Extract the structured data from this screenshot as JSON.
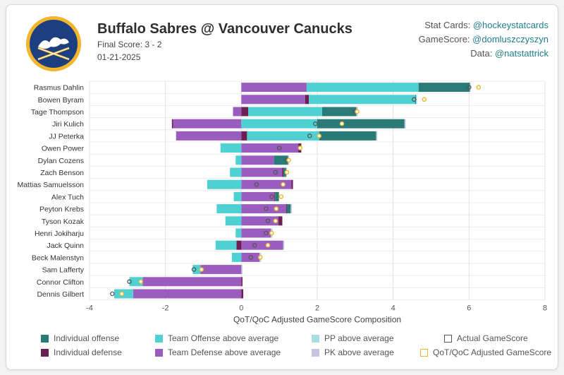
{
  "header": {
    "title": "Buffalo Sabres @ Vancouver Canucks",
    "final_score": "Final Score: 3 - 2",
    "date": "01-21-2025"
  },
  "credits": [
    {
      "label": "Stat Cards: ",
      "handle": "@hockeystatcards"
    },
    {
      "label": "GameScore: ",
      "handle": "@domluszczyszyn"
    },
    {
      "label": "Data: ",
      "handle": "@natstattrick"
    }
  ],
  "colors": {
    "individual_offense": "#2a7b78",
    "individual_defense": "#6b1f52",
    "team_offense": "#4fd1d3",
    "team_defense": "#9a5cbf",
    "pp": "#a8dde6",
    "pk": "#c5c5e2",
    "actual_marker": "#555555",
    "adjusted_marker": "#e8b92c"
  },
  "chart_data": {
    "type": "bar",
    "orientation": "horizontal",
    "stacked": true,
    "xlabel": "QoT/QoC Adjusted GameScore Composition",
    "xlim": [
      -4,
      8
    ],
    "xticks": [
      -4,
      -2,
      0,
      2,
      4,
      6,
      8
    ],
    "grid": true,
    "legend_position": "bottom",
    "categories": [
      "Rasmus Dahlin",
      "Bowen Byram",
      "Tage Thompson",
      "Jiri Kulich",
      "JJ Peterka",
      "Owen Power",
      "Dylan Cozens",
      "Zach Benson",
      "Mattias Samuelsson",
      "Alex Tuch",
      "Peyton Krebs",
      "Tyson Kozak",
      "Henri Jokiharju",
      "Jack Quinn",
      "Beck Malenstyn",
      "Sam Lafferty",
      "Connor Clifton",
      "Dennis Gilbert"
    ],
    "series": [
      {
        "name": "Individual offense",
        "values": [
          1.35,
          0.02,
          0.9,
          2.3,
          1.5,
          0,
          0.37,
          0.07,
          0,
          0.1,
          0.1,
          0,
          0,
          0,
          0,
          0,
          0,
          0
        ]
      },
      {
        "name": "Individual defense",
        "values": [
          0,
          0.1,
          0.18,
          -0.03,
          0.15,
          0.08,
          0,
          0.03,
          0.04,
          0.02,
          0.02,
          0.1,
          0,
          -0.13,
          0,
          0,
          0.03,
          0.05
        ]
      },
      {
        "name": "Team Offense above average",
        "values": [
          2.95,
          2.8,
          1.95,
          2.0,
          1.9,
          -0.55,
          -0.15,
          -0.3,
          -0.9,
          -0.2,
          -0.65,
          -0.42,
          -0.15,
          -0.55,
          -0.25,
          -0.2,
          -0.35,
          -0.5
        ]
      },
      {
        "name": "Team Defense above average",
        "values": [
          1.72,
          1.68,
          -0.22,
          -1.8,
          -1.72,
          1.5,
          0.86,
          1.08,
          1.32,
          0.87,
          1.18,
          0.98,
          0.78,
          1.1,
          0.48,
          -1.08,
          -2.6,
          -2.85
        ]
      },
      {
        "name": "PP above average",
        "values": [
          0,
          0.03,
          0,
          0,
          0,
          0,
          0,
          0,
          0,
          0,
          0,
          0,
          0,
          0,
          0,
          0,
          0,
          0
        ]
      },
      {
        "name": "PK above average",
        "values": [
          0.02,
          0,
          0.04,
          0.03,
          0.03,
          0,
          0.03,
          0.02,
          0,
          0,
          0.03,
          0,
          0.04,
          0.03,
          0.04,
          0.03,
          0,
          0
        ]
      }
    ],
    "markers": [
      {
        "name": "Actual GameScore",
        "values": [
          6.0,
          4.55,
          3.0,
          1.95,
          1.8,
          1.0,
          1.2,
          0.9,
          0.4,
          0.8,
          0.65,
          0.7,
          0.65,
          0.35,
          0.25,
          -1.25,
          -2.95,
          -3.4
        ]
      },
      {
        "name": "QoT/QoC Adjusted GameScore",
        "values": [
          6.25,
          4.82,
          3.05,
          2.65,
          2.05,
          1.55,
          1.25,
          1.2,
          1.1,
          1.05,
          0.92,
          0.9,
          0.8,
          0.7,
          0.5,
          -1.05,
          -2.65,
          -3.15
        ]
      }
    ]
  }
}
